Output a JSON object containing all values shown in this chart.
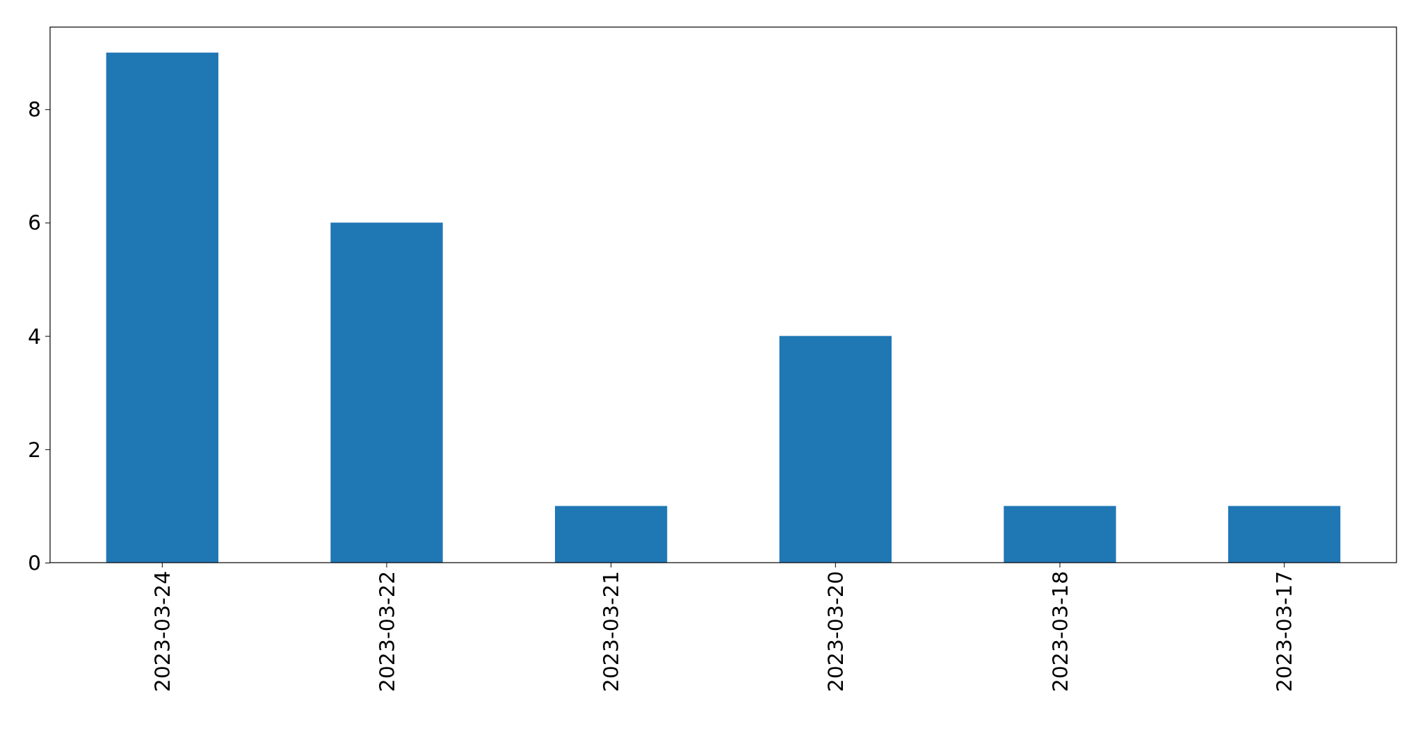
{
  "chart_data": {
    "type": "bar",
    "categories": [
      "2023-03-24",
      "2023-03-22",
      "2023-03-21",
      "2023-03-20",
      "2023-03-18",
      "2023-03-17"
    ],
    "values": [
      9,
      6,
      1,
      4,
      1,
      1
    ],
    "color": "#1f77b4",
    "ylim": [
      0,
      9.45
    ],
    "yticks": [
      0,
      2,
      4,
      6,
      8
    ]
  }
}
